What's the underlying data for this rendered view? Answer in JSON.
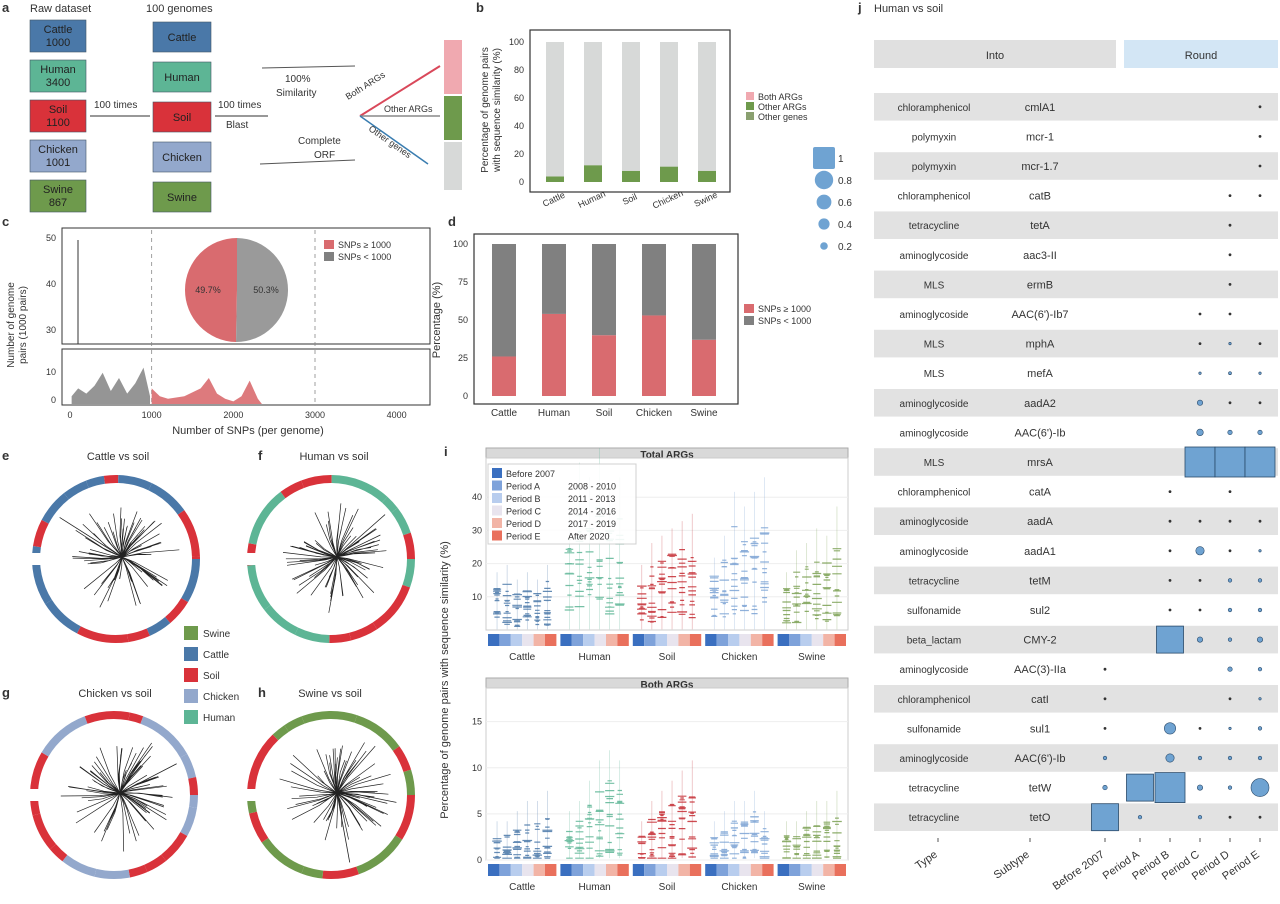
{
  "panel_a": {
    "letter": "a",
    "raw_header": "Raw dataset",
    "genome_header": "100 genomes",
    "boxes": [
      {
        "raw": [
          "Cattle",
          "1000"
        ],
        "g": "Cattle",
        "color": "#4a78a8"
      },
      {
        "raw": [
          "Human",
          "3400"
        ],
        "g": "Human",
        "color": "#5db595"
      },
      {
        "raw": [
          "Soil",
          "1100"
        ],
        "g": "Soil",
        "color": "#d9323a"
      },
      {
        "raw": [
          "Chicken",
          "1001"
        ],
        "g": "Chicken",
        "color": "#93a8cc"
      },
      {
        "raw": [
          "Swine",
          "867"
        ],
        "g": "Swine",
        "color": "#6e9a4c"
      }
    ],
    "arrow1": "100 times",
    "arrow2": [
      "100 times",
      "Blast"
    ],
    "sim": [
      "100%",
      "Similarity"
    ],
    "comp": [
      "Complete",
      "ORF"
    ],
    "branches": [
      "Both ARGs",
      "Other ARGs",
      "Other genes"
    ]
  },
  "panel_b": {
    "letter": "b",
    "ylabel": [
      "Percentage of genome pairs",
      "with sequence similarity (%)"
    ],
    "legend": [
      {
        "label": "Both ARGs",
        "color": "#f0a9b0"
      },
      {
        "label": "Other ARGs",
        "color": "#6e9a4c"
      },
      {
        "label": "Other genes",
        "color": "#8aa070"
      }
    ]
  },
  "panel_c": {
    "letter": "c",
    "ylabel": [
      "Number of genome",
      "pairs (1000 pairs)"
    ],
    "xlabel": "Number of SNPs (per genome)",
    "pie_labels": [
      "49.7%",
      "50.3%"
    ],
    "legend": [
      {
        "label": "SNPs ≥ 1000",
        "color": "#d96b6f"
      },
      {
        "label": "SNPs < 1000",
        "color": "#808080"
      }
    ]
  },
  "panel_d": {
    "letter": "d",
    "ylabel": "Percentage (%)",
    "legend": [
      {
        "label": "SNPs ≥ 1000",
        "color": "#d96b6f"
      },
      {
        "label": "SNPs < 1000",
        "color": "#808080"
      }
    ]
  },
  "trees": [
    {
      "letter": "e",
      "title": "Cattle vs soil"
    },
    {
      "letter": "f",
      "title": "Human vs soil"
    },
    {
      "letter": "g",
      "title": "Chicken vs soil"
    },
    {
      "letter": "h",
      "title": "Swine vs soil"
    }
  ],
  "tree_legend": [
    {
      "label": "Swine",
      "color": "#6e9a4c"
    },
    {
      "label": "Cattle",
      "color": "#4a78a8"
    },
    {
      "label": "Soil",
      "color": "#d9323a"
    },
    {
      "label": "Chicken",
      "color": "#93a8cc"
    },
    {
      "label": "Human",
      "color": "#5db595"
    }
  ],
  "panel_i": {
    "letter": "i",
    "top_title": "Total ARGs",
    "bottom_title": "Both ARGs",
    "ylabel": "Percentage of genome pairs with sequence similarity (%)",
    "periods": [
      {
        "label": "Before 2007",
        "range": "",
        "color": "#3a6fc0"
      },
      {
        "label": "Period A",
        "range": "2008 - 2010",
        "color": "#7ea2da"
      },
      {
        "label": "Period B",
        "range": "2011 - 2013",
        "color": "#b8cdee"
      },
      {
        "label": "Period C",
        "range": "2014 - 2016",
        "color": "#e8e4ee"
      },
      {
        "label": "Period D",
        "range": "2017 - 2019",
        "color": "#f2b4a6"
      },
      {
        "label": "Period E",
        "range": "After 2020",
        "color": "#e9705c"
      }
    ]
  },
  "panel_j": {
    "letter": "j",
    "title": "Human vs soil",
    "header_left": "Into",
    "header_right": "Round",
    "size_legend": [
      "1",
      "0.8",
      "0.6",
      "0.4",
      "0.2"
    ],
    "col_labels": [
      "Type",
      "Subtype",
      "Before 2007",
      "Period A",
      "Period B",
      "Period C",
      "Period D",
      "Period E"
    ],
    "rows": [
      {
        "type": "chloramphenicol",
        "subtype": "cmlA1",
        "v": [
          0,
          0,
          0,
          0,
          0,
          0.05
        ]
      },
      {
        "type": "polymyxin",
        "subtype": "mcr-1",
        "v": [
          0,
          0,
          0,
          0,
          0,
          0.05
        ]
      },
      {
        "type": "polymyxin",
        "subtype": "mcr-1.7",
        "v": [
          0,
          0,
          0,
          0,
          0,
          0.05
        ]
      },
      {
        "type": "chloramphenicol",
        "subtype": "catB",
        "v": [
          0,
          0,
          0,
          0,
          0.05,
          0.05
        ]
      },
      {
        "type": "tetracycline",
        "subtype": "tetA",
        "v": [
          0,
          0,
          0,
          0,
          0.05,
          0
        ]
      },
      {
        "type": "aminoglycoside",
        "subtype": "aac3-II",
        "v": [
          0,
          0,
          0,
          0,
          0.05,
          0
        ]
      },
      {
        "type": "MLS",
        "subtype": "ermB",
        "v": [
          0,
          0,
          0,
          0,
          0.05,
          0
        ]
      },
      {
        "type": "aminoglycoside",
        "subtype": "AAC(6')-Ib7",
        "v": [
          0,
          0,
          0,
          0.05,
          0.05,
          0
        ]
      },
      {
        "type": "MLS",
        "subtype": "mphA",
        "v": [
          0,
          0,
          0,
          0.05,
          0.08,
          0.05
        ]
      },
      {
        "type": "MLS",
        "subtype": "mefA",
        "v": [
          0,
          0,
          0,
          0.08,
          0.1,
          0.08
        ]
      },
      {
        "type": "aminoglycoside",
        "subtype": "aadA2",
        "v": [
          0,
          0,
          0,
          0.18,
          0.05,
          0.05
        ]
      },
      {
        "type": "aminoglycoside",
        "subtype": "AAC(6')-Ib",
        "v": [
          0,
          0,
          0,
          0.22,
          0.15,
          0.15
        ]
      },
      {
        "type": "MLS",
        "subtype": "mrsA",
        "v": [
          0,
          0,
          0,
          1,
          1,
          1
        ]
      },
      {
        "type": "chloramphenicol",
        "subtype": "catA",
        "v": [
          0,
          0,
          0.05,
          0,
          0.05,
          0
        ]
      },
      {
        "type": "aminoglycoside",
        "subtype": "aadA",
        "v": [
          0,
          0,
          0.05,
          0.05,
          0.05,
          0.05
        ]
      },
      {
        "type": "aminoglycoside",
        "subtype": "aadA1",
        "v": [
          0,
          0,
          0.05,
          0.28,
          0.05,
          0.08
        ]
      },
      {
        "type": "tetracycline",
        "subtype": "tetM",
        "v": [
          0,
          0,
          0.05,
          0.05,
          0.12,
          0.12
        ]
      },
      {
        "type": "sulfonamide",
        "subtype": "sul2",
        "v": [
          0,
          0,
          0.05,
          0.05,
          0.12,
          0.12
        ]
      },
      {
        "type": "beta_lactam",
        "subtype": "CMY-2",
        "v": [
          0,
          0,
          0.9,
          0.18,
          0.12,
          0.18
        ]
      },
      {
        "type": "aminoglycoside",
        "subtype": "AAC(3)-IIa",
        "v": [
          0.05,
          0,
          0,
          0,
          0.15,
          0.12
        ]
      },
      {
        "type": "chloramphenicol",
        "subtype": "catI",
        "v": [
          0.05,
          0,
          0,
          0,
          0.05,
          0.08
        ]
      },
      {
        "type": "sulfonamide",
        "subtype": "sul1",
        "v": [
          0.05,
          0,
          0.38,
          0.05,
          0.08,
          0.12
        ]
      },
      {
        "type": "aminoglycoside",
        "subtype": "AAC(6')-Ib",
        "v": [
          0.12,
          0,
          0.28,
          0.12,
          0.12,
          0.12
        ]
      },
      {
        "type": "tetracycline",
        "subtype": "tetW",
        "v": [
          0.15,
          0.9,
          1,
          0.18,
          0.12,
          0.6
        ]
      },
      {
        "type": "tetracycline",
        "subtype": "tetO",
        "v": [
          0.9,
          0.12,
          0,
          0.12,
          0.05,
          0.05
        ]
      }
    ]
  },
  "chart_data": [
    {
      "type": "bar",
      "panel": "b",
      "categories": [
        "Cattle",
        "Human",
        "Soil",
        "Chicken",
        "Swine"
      ],
      "series": [
        {
          "name": "Both ARGs",
          "values": [
            0,
            0,
            0,
            0,
            0
          ]
        },
        {
          "name": "Other ARGs",
          "values": [
            4,
            12,
            8,
            11,
            8
          ]
        },
        {
          "name": "Other genes",
          "values": [
            96,
            88,
            92,
            89,
            92
          ]
        }
      ],
      "ylim": [
        0,
        100
      ],
      "yticks": [
        0,
        20,
        40,
        60,
        80,
        100
      ],
      "stacked": true
    },
    {
      "type": "area",
      "panel": "c",
      "xlim": [
        0,
        4000
      ],
      "xticks": [
        0,
        1000,
        2000,
        3000,
        4000
      ],
      "yticks_top": [
        30,
        40,
        50
      ],
      "yticks_bottom": [
        0,
        10
      ],
      "series": [
        {
          "name": "SNPs < 1000",
          "x": [
            20,
            100,
            200,
            300,
            400,
            500,
            600,
            700,
            800,
            900,
            980
          ],
          "y": [
            3,
            6,
            4,
            7,
            12,
            5,
            10,
            4,
            8,
            14,
            3
          ]
        },
        {
          "name": "SNPs ≥ 1000",
          "x": [
            1000,
            1100,
            1200,
            1400,
            1600,
            1700,
            1800,
            1900,
            2000,
            2100,
            2200,
            2300,
            2350
          ],
          "y": [
            6,
            3,
            2,
            3,
            6,
            10,
            4,
            2,
            1,
            3,
            9,
            2,
            0
          ]
        }
      ]
    },
    {
      "type": "pie",
      "panel": "c-inset",
      "categories": [
        "SNPs ≥ 1000",
        "SNPs < 1000"
      ],
      "values": [
        49.7,
        50.3
      ]
    },
    {
      "type": "bar",
      "panel": "d",
      "categories": [
        "Cattle",
        "Human",
        "Soil",
        "Chicken",
        "Swine"
      ],
      "series": [
        {
          "name": "SNPs ≥ 1000",
          "values": [
            26,
            54,
            40,
            53,
            37
          ]
        },
        {
          "name": "SNPs < 1000",
          "values": [
            74,
            46,
            60,
            47,
            63
          ]
        }
      ],
      "ylim": [
        0,
        100
      ],
      "yticks": [
        0,
        25,
        50,
        75,
        100
      ],
      "stacked": true
    },
    {
      "type": "scatter",
      "panel": "i-top",
      "title": "Total ARGs",
      "categories": [
        "Cattle",
        "Human",
        "Soil",
        "Chicken",
        "Swine"
      ],
      "ylim": [
        0,
        50
      ],
      "yticks": [
        10,
        20,
        30,
        40
      ],
      "medians": [
        [
          7,
          8,
          6,
          7,
          6,
          8
        ],
        [
          16,
          22,
          20,
          24,
          18,
          20
        ],
        [
          8,
          11,
          12,
          13,
          14,
          15
        ],
        [
          9,
          12,
          18,
          16,
          18,
          20
        ],
        [
          7,
          10,
          11,
          13,
          12,
          16
        ]
      ]
    },
    {
      "type": "scatter",
      "panel": "i-bottom",
      "title": "Both ARGs",
      "categories": [
        "Cattle",
        "Human",
        "Soil",
        "Chicken",
        "Swine"
      ],
      "ylim": [
        0,
        18
      ],
      "yticks": [
        0,
        5,
        10,
        15
      ],
      "medians": [
        [
          1,
          1,
          1.5,
          2,
          2,
          2.5
        ],
        [
          1.5,
          2,
          3,
          4,
          4.5,
          4
        ],
        [
          1,
          2,
          2.5,
          3,
          3.5,
          4
        ],
        [
          1,
          1.5,
          2,
          2,
          2.5,
          1.5
        ],
        [
          1,
          1,
          1.5,
          2,
          2,
          2.5
        ]
      ]
    }
  ]
}
